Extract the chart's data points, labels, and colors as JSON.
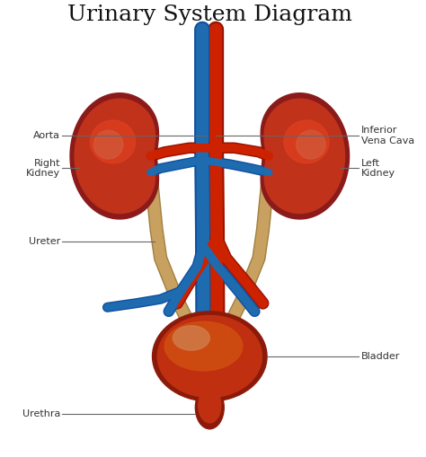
{
  "title": "Urinary System Diagram",
  "title_fontsize": 18,
  "background_color": "#ffffff",
  "labels": {
    "aorta": "Aorta",
    "right_kidney": "Right\nKidney",
    "inferior_vena_cava": "Inferior\nVena Cava",
    "left_kidney": "Left\nKidney",
    "ureter": "Ureter",
    "bladder": "Bladder",
    "urethra": "Urethra"
  },
  "colors": {
    "kidney_dark": "#8B1A1A",
    "kidney_mid": "#C0321A",
    "kidney_light": "#E04020",
    "kidney_highlight": "#D06040",
    "artery": "#CC2200",
    "artery_dark": "#991100",
    "vein": "#1E6BB0",
    "vein_dark": "#1050A0",
    "ureter_tube": "#C8A060",
    "ureter_dark": "#A08040",
    "bladder_dark": "#8B1A0A",
    "bladder_mid": "#C03010",
    "bladder_light": "#D05010",
    "bladder_highlight": "#D08050",
    "label_line": "#666666",
    "label_text": "#333333"
  },
  "figsize": [
    4.74,
    5.09
  ],
  "dpi": 100
}
